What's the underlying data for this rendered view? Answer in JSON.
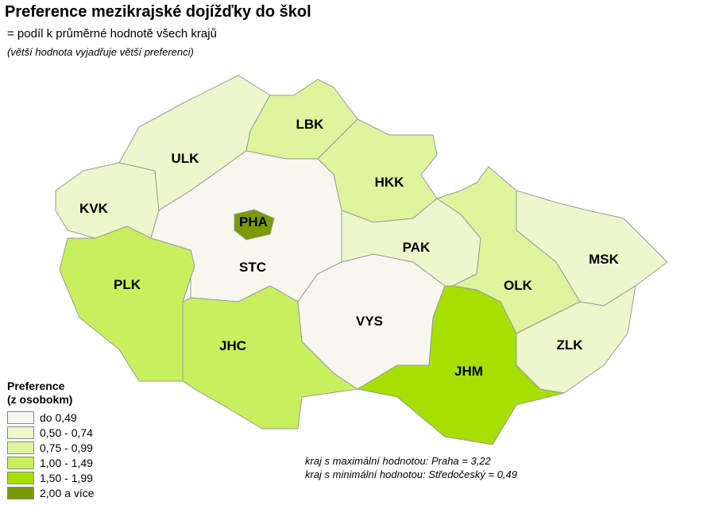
{
  "title": "Preference mezikrajské dojížďky do škol",
  "subtitle": "= podíl k průměrné hodnotě všech krajů",
  "subtitle2": "(větší hodnota vyjadřuje větší preferenci)",
  "legend": {
    "title1": "Preference",
    "title2": "(z osobokm)",
    "classes": [
      {
        "label": "do 0,49",
        "color": "#f7f7ef"
      },
      {
        "label": "0,50 - 0,74",
        "color": "#eef6cc"
      },
      {
        "label": "0,75 - 0,99",
        "color": "#ddf59c"
      },
      {
        "label": "1,00 - 1,49",
        "color": "#c8ef5e"
      },
      {
        "label": "1,50 - 1,99",
        "color": "#a6df00"
      },
      {
        "label": "2,00 a více",
        "color": "#7a9a00"
      }
    ]
  },
  "regions": [
    {
      "code": "KVK",
      "class": 1
    },
    {
      "code": "ULK",
      "class": 1
    },
    {
      "code": "LBK",
      "class": 2
    },
    {
      "code": "HKK",
      "class": 2
    },
    {
      "code": "STC",
      "class": 0
    },
    {
      "code": "PHA",
      "class": 5
    },
    {
      "code": "PLK",
      "class": 3
    },
    {
      "code": "JHC",
      "class": 3
    },
    {
      "code": "VYS",
      "class": 0
    },
    {
      "code": "PAK",
      "class": 1
    },
    {
      "code": "JHM",
      "class": 4
    },
    {
      "code": "OLK",
      "class": 2
    },
    {
      "code": "MSK",
      "class": 1
    },
    {
      "code": "ZLK",
      "class": 1
    }
  ],
  "notes": {
    "max": "kraj s maximální hodnotou: Praha = 3,22",
    "min": "kraj s minimální hodnotou: Středočeský = 0,49"
  }
}
